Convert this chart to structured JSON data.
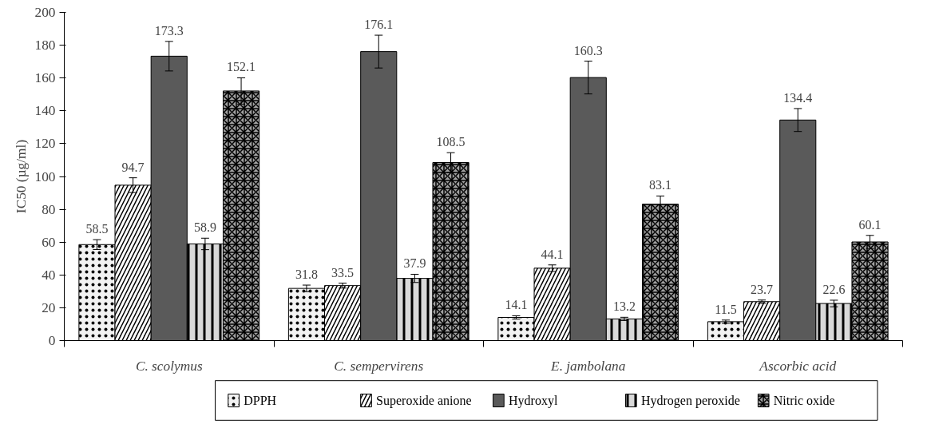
{
  "chart_data": {
    "type": "bar",
    "ylabel": "IC50 (µg/ml)",
    "categories": [
      "C. scolymus",
      "C. sempervirens",
      "E. jambolana",
      "Ascorbic acid"
    ],
    "series": [
      {
        "name": "DPPH",
        "color": "#f2f2f2",
        "values": [
          58.5,
          31.8,
          14.1,
          11.5
        ],
        "errors": [
          3,
          2,
          1,
          1
        ]
      },
      {
        "name": "Superoxide anione",
        "color": "#000000",
        "values": [
          94.7,
          33.5,
          44.1,
          23.7
        ],
        "errors": [
          4.5,
          1.5,
          2,
          1
        ]
      },
      {
        "name": "Hydroxyl",
        "color": "#5a5a5a",
        "values": [
          173.3,
          176.1,
          160.3,
          134.4
        ],
        "errors": [
          9,
          10,
          10,
          7
        ]
      },
      {
        "name": "Hydrogen peroxide",
        "color": "#d9d9d9",
        "values": [
          58.9,
          37.9,
          13.2,
          22.6
        ],
        "errors": [
          3.5,
          2.5,
          1,
          2
        ]
      },
      {
        "name": "Nitric oxide",
        "color": "#a0a0a0",
        "values": [
          152.1,
          108.5,
          83.1,
          60.1
        ],
        "errors": [
          8,
          6,
          5,
          4
        ]
      }
    ],
    "ylim": [
      0,
      200
    ],
    "yticks": [
      0,
      20,
      40,
      60,
      80,
      100,
      120,
      140,
      160,
      180,
      200
    ],
    "data_labels": true,
    "grid": false,
    "legend": "bottom"
  }
}
